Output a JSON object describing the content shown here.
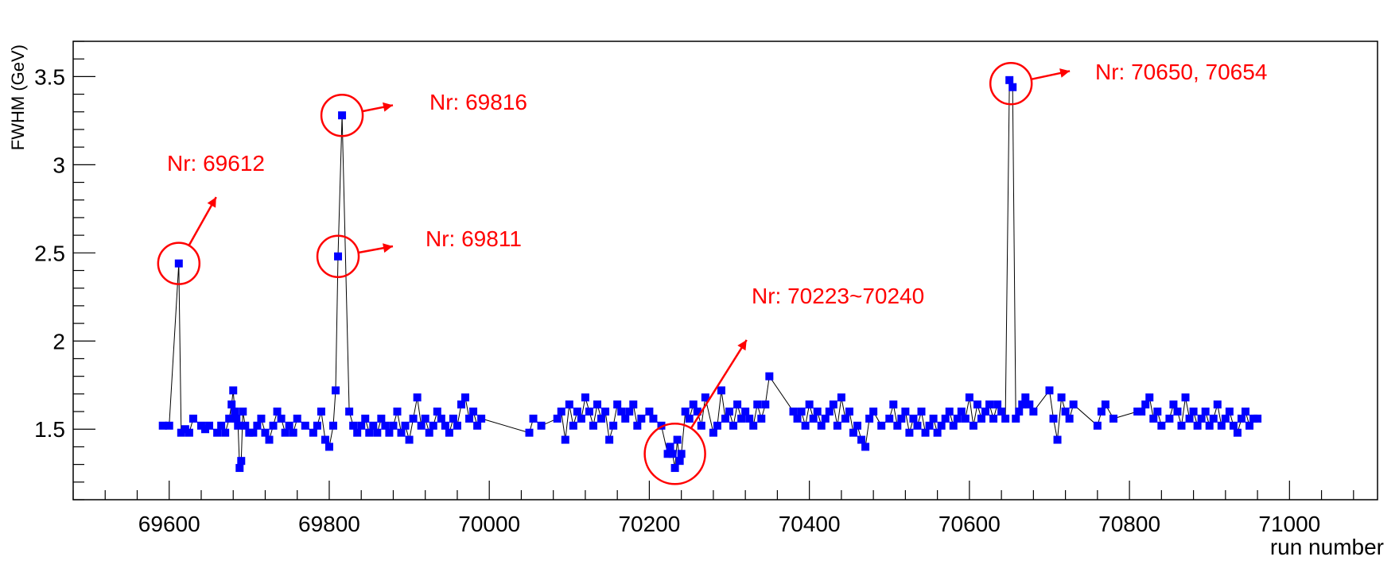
{
  "chart_data": {
    "type": "scatter",
    "xlabel": "run number",
    "ylabel": "FWHM (GeV)",
    "xlim": [
      69480,
      71110
    ],
    "ylim": [
      1.1,
      3.7
    ],
    "x_ticks": [
      69600,
      69800,
      70000,
      70200,
      70400,
      70600,
      70800,
      71000
    ],
    "y_ticks": [
      1.5,
      2,
      2.5,
      3,
      3.5
    ],
    "x_tick_labels": [
      "69600",
      "69800",
      "70000",
      "70200",
      "70400",
      "70600",
      "70800",
      "71000"
    ],
    "y_tick_labels": [
      "1.5",
      "2",
      "2.5",
      "3",
      "3.5"
    ],
    "grid": false,
    "marker_color": "#0000ff",
    "line_color": "#000000",
    "annotation_color": "#ff0000",
    "series": [
      {
        "x": [
          69592,
          69600,
          69612,
          69615,
          69620,
          69625,
          69630,
          69640,
          69645,
          69650,
          69660,
          69665,
          69670,
          69675,
          69678,
          69680,
          69682,
          69684,
          69686,
          69688,
          69690,
          69692,
          69695,
          69700,
          69705,
          69710,
          69715,
          69720,
          69725,
          69730,
          69735,
          69740,
          69745,
          69750,
          69755,
          69760,
          69770,
          69780,
          69785,
          69790,
          69795,
          69800,
          69805,
          69808,
          69811,
          69816,
          69825,
          69830,
          69835,
          69840,
          69845,
          69850,
          69855,
          69860,
          69865,
          69870,
          69875,
          69880,
          69885,
          69890,
          69895,
          69900,
          69905,
          69910,
          69915,
          69920,
          69925,
          69930,
          69935,
          69940,
          69945,
          69950,
          69955,
          69960,
          69965,
          69970,
          69975,
          69980,
          69985,
          69990,
          70050,
          70055,
          70065,
          70085,
          70090,
          70095,
          70100,
          70105,
          70110,
          70115,
          70120,
          70125,
          70130,
          70135,
          70140,
          70145,
          70150,
          70155,
          70160,
          70165,
          70170,
          70175,
          70180,
          70185,
          70190,
          70200,
          70205,
          70215,
          70223,
          70226,
          70229,
          70232,
          70235,
          70238,
          70240,
          70245,
          70250,
          70255,
          70260,
          70265,
          70270,
          70280,
          70285,
          70290,
          70295,
          70300,
          70305,
          70310,
          70315,
          70320,
          70325,
          70330,
          70335,
          70340,
          70345,
          70350,
          70380,
          70385,
          70390,
          70395,
          70400,
          70405,
          70410,
          70415,
          70420,
          70425,
          70430,
          70435,
          70440,
          70445,
          70450,
          70455,
          70460,
          70465,
          70470,
          70475,
          70480,
          70490,
          70500,
          70505,
          70510,
          70515,
          70520,
          70525,
          70530,
          70535,
          70540,
          70545,
          70550,
          70555,
          70560,
          70565,
          70570,
          70575,
          70580,
          70585,
          70590,
          70595,
          70600,
          70605,
          70610,
          70615,
          70620,
          70625,
          70630,
          70635,
          70640,
          70645,
          70650,
          70654,
          70658,
          70662,
          70666,
          70670,
          70675,
          70680,
          70700,
          70705,
          70710,
          70715,
          70720,
          70725,
          70730,
          70760,
          70765,
          70770,
          70780,
          70810,
          70815,
          70820,
          70825,
          70830,
          70835,
          70840,
          70850,
          70855,
          70860,
          70865,
          70870,
          70875,
          70880,
          70885,
          70890,
          70895,
          70900,
          70905,
          70910,
          70915,
          70920,
          70925,
          70930,
          70935,
          70940,
          70945,
          70950,
          70955,
          70960
        ],
        "y": [
          1.52,
          1.52,
          2.44,
          1.48,
          1.5,
          1.48,
          1.56,
          1.52,
          1.5,
          1.52,
          1.48,
          1.52,
          1.48,
          1.56,
          1.64,
          1.72,
          1.6,
          1.56,
          1.52,
          1.28,
          1.32,
          1.6,
          1.52,
          1.48,
          1.48,
          1.52,
          1.56,
          1.48,
          1.44,
          1.52,
          1.6,
          1.56,
          1.48,
          1.52,
          1.48,
          1.56,
          1.52,
          1.48,
          1.52,
          1.6,
          1.44,
          1.4,
          1.52,
          1.72,
          2.48,
          3.28,
          1.6,
          1.52,
          1.48,
          1.52,
          1.56,
          1.48,
          1.52,
          1.48,
          1.56,
          1.52,
          1.48,
          1.52,
          1.6,
          1.48,
          1.52,
          1.44,
          1.56,
          1.68,
          1.52,
          1.56,
          1.48,
          1.52,
          1.6,
          1.56,
          1.52,
          1.48,
          1.56,
          1.52,
          1.64,
          1.68,
          1.56,
          1.6,
          1.52,
          1.56,
          1.48,
          1.56,
          1.52,
          1.56,
          1.6,
          1.44,
          1.64,
          1.52,
          1.6,
          1.56,
          1.68,
          1.6,
          1.52,
          1.64,
          1.56,
          1.6,
          1.44,
          1.52,
          1.64,
          1.6,
          1.56,
          1.6,
          1.64,
          1.52,
          1.56,
          1.6,
          1.56,
          1.52,
          1.36,
          1.4,
          1.36,
          1.28,
          1.44,
          1.32,
          1.36,
          1.6,
          1.56,
          1.64,
          1.6,
          1.52,
          1.68,
          1.48,
          1.52,
          1.72,
          1.56,
          1.6,
          1.52,
          1.64,
          1.56,
          1.6,
          1.56,
          1.52,
          1.64,
          1.56,
          1.64,
          1.8,
          1.6,
          1.56,
          1.6,
          1.52,
          1.64,
          1.56,
          1.6,
          1.52,
          1.56,
          1.6,
          1.64,
          1.52,
          1.68,
          1.56,
          1.6,
          1.48,
          1.52,
          1.44,
          1.4,
          1.56,
          1.6,
          1.52,
          1.56,
          1.64,
          1.52,
          1.56,
          1.6,
          1.48,
          1.56,
          1.52,
          1.6,
          1.48,
          1.52,
          1.56,
          1.48,
          1.52,
          1.56,
          1.6,
          1.52,
          1.56,
          1.6,
          1.56,
          1.68,
          1.52,
          1.64,
          1.56,
          1.6,
          1.64,
          1.56,
          1.64,
          1.6,
          1.56,
          3.48,
          3.44,
          1.56,
          1.6,
          1.64,
          1.68,
          1.64,
          1.6,
          1.72,
          1.56,
          1.44,
          1.68,
          1.6,
          1.56,
          1.64,
          1.52,
          1.6,
          1.64,
          1.56,
          1.6,
          1.6,
          1.64,
          1.68,
          1.56,
          1.6,
          1.52,
          1.56,
          1.64,
          1.6,
          1.52,
          1.68,
          1.56,
          1.6,
          1.52,
          1.56,
          1.6,
          1.52,
          1.56,
          1.64,
          1.52,
          1.56,
          1.6,
          1.52,
          1.48,
          1.56,
          1.6,
          1.52,
          1.56,
          1.56
        ]
      }
    ],
    "annotations": [
      {
        "text": "Nr: 69612",
        "target_x": 69612,
        "target_y": 2.44
      },
      {
        "text": "Nr: 69816",
        "target_x": 69816,
        "target_y": 3.28
      },
      {
        "text": "Nr: 69811",
        "target_x": 69811,
        "target_y": 2.48
      },
      {
        "text": "Nr: 70223~70240",
        "target_x": 70232,
        "target_y": 1.36
      },
      {
        "text": "Nr: 70650, 70654",
        "target_x": 70652,
        "target_y": 3.46
      }
    ]
  }
}
